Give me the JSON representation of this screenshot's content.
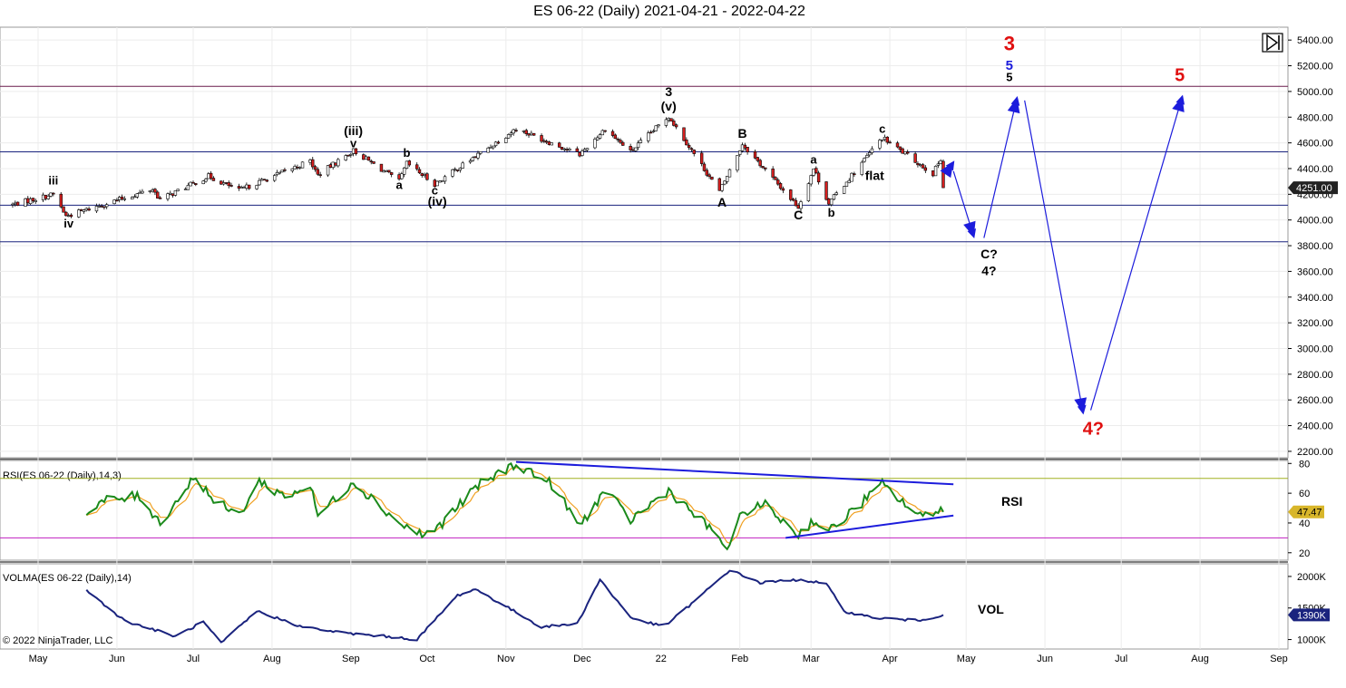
{
  "title": "ES 06-22 (Daily)  2021-04-21 - 2022-04-22",
  "copyright": "© 2022 NinjaTrader, LLC",
  "toolbar": {
    "icon": "skip-to-end-icon"
  },
  "colors": {
    "up_candle": "#ffffff",
    "down_candle": "#d61f1f",
    "candle_outline": "#000000",
    "level_lines": "#1a237e",
    "top_line": "#6a1b4d",
    "rsi_line": "#1b8a1b",
    "rsi_avg": "#f0a020",
    "rsi_70": "#a0b020",
    "rsi_30": "#c020c0",
    "vol_line": "#1a237e",
    "arrows": "#1c1cdc",
    "red_label": "#e01010",
    "blue_label": "#1c1cdc"
  },
  "chart_data": [
    {
      "type": "candlestick",
      "name": "price",
      "y_ticks": [
        "5400.00",
        "5200.00",
        "5000.00",
        "4800.00",
        "4600.00",
        "4400.00",
        "4200.00",
        "4000.00",
        "3800.00",
        "3600.00",
        "3400.00",
        "3200.00",
        "3000.00",
        "2800.00",
        "2600.00",
        "2400.00",
        "2200.00"
      ],
      "ylim": [
        2150,
        5500
      ],
      "x_ticks": [
        "May",
        "Jun",
        "Jul",
        "Aug",
        "Sep",
        "Oct",
        "Nov",
        "Dec",
        "22",
        "Feb",
        "Mar",
        "Apr",
        "May",
        "Jun",
        "Jul",
        "Aug",
        "Sep"
      ],
      "x_range": [
        "2021-05-01",
        "2022-09-01"
      ],
      "last_price": "4251.00",
      "horizontal_levels": [
        5040,
        4530,
        4115,
        3830
      ],
      "key_points": [
        {
          "date": "2021-04-21",
          "price": 4120
        },
        {
          "date": "2021-05-07",
          "price": 4200
        },
        {
          "date": "2021-05-12",
          "price": 4030
        },
        {
          "date": "2021-06-15",
          "price": 4240
        },
        {
          "date": "2021-06-18",
          "price": 4160
        },
        {
          "date": "2021-07-07",
          "price": 4340
        },
        {
          "date": "2021-07-19",
          "price": 4230
        },
        {
          "date": "2021-08-16",
          "price": 4460
        },
        {
          "date": "2021-08-19",
          "price": 4350
        },
        {
          "date": "2021-09-02",
          "price": 4540
        },
        {
          "date": "2021-09-20",
          "price": 4300
        },
        {
          "date": "2021-09-23",
          "price": 4440
        },
        {
          "date": "2021-10-04",
          "price": 4280
        },
        {
          "date": "2021-11-05",
          "price": 4710
        },
        {
          "date": "2021-11-30",
          "price": 4510
        },
        {
          "date": "2021-12-10",
          "price": 4710
        },
        {
          "date": "2021-12-20",
          "price": 4530
        },
        {
          "date": "2022-01-04",
          "price": 4808
        },
        {
          "date": "2022-01-24",
          "price": 4220
        },
        {
          "date": "2022-02-02",
          "price": 4590
        },
        {
          "date": "2022-02-24",
          "price": 4100
        },
        {
          "date": "2022-03-02",
          "price": 4400
        },
        {
          "date": "2022-03-08",
          "price": 4130
        },
        {
          "date": "2022-03-29",
          "price": 4640
        },
        {
          "date": "2022-04-18",
          "price": 4360
        },
        {
          "date": "2022-04-21",
          "price": 4480
        },
        {
          "date": "2022-04-22",
          "price": 4251
        }
      ],
      "wave_labels": [
        {
          "text": "iii",
          "date": "2021-05-07",
          "price": 4275,
          "color": "black",
          "size": 13
        },
        {
          "text": "iv",
          "date": "2021-05-13",
          "price": 3940,
          "color": "black",
          "size": 13
        },
        {
          "text": "(iii)",
          "date": "2021-09-02",
          "price": 4660,
          "color": "black",
          "size": 14
        },
        {
          "text": "v",
          "date": "2021-09-02",
          "price": 4565,
          "color": "black",
          "size": 13
        },
        {
          "text": "a",
          "date": "2021-09-20",
          "price": 4240,
          "color": "black",
          "size": 13
        },
        {
          "text": "b",
          "date": "2021-09-23",
          "price": 4490,
          "color": "black",
          "size": 13
        },
        {
          "text": "c",
          "date": "2021-10-04",
          "price": 4200,
          "color": "black",
          "size": 13
        },
        {
          "text": "(iv)",
          "date": "2021-10-05",
          "price": 4110,
          "color": "black",
          "size": 14
        },
        {
          "text": "3",
          "date": "2022-01-04",
          "price": 4965,
          "color": "black",
          "size": 14
        },
        {
          "text": "(v)",
          "date": "2022-01-04",
          "price": 4850,
          "color": "black",
          "size": 14
        },
        {
          "text": "A",
          "date": "2022-01-25",
          "price": 4105,
          "color": "black",
          "size": 14
        },
        {
          "text": "B",
          "date": "2022-02-02",
          "price": 4640,
          "color": "black",
          "size": 14
        },
        {
          "text": "C",
          "date": "2022-02-24",
          "price": 4005,
          "color": "black",
          "size": 14
        },
        {
          "text": "a",
          "date": "2022-03-02",
          "price": 4440,
          "color": "black",
          "size": 13
        },
        {
          "text": "b",
          "date": "2022-03-09",
          "price": 4025,
          "color": "black",
          "size": 13
        },
        {
          "text": "c",
          "date": "2022-03-29",
          "price": 4680,
          "color": "black",
          "size": 13
        },
        {
          "text": "flat",
          "date": "2022-03-26",
          "price": 4310,
          "color": "black",
          "size": 14
        },
        {
          "text": "C?",
          "date": "2022-05-10",
          "price": 3700,
          "color": "black",
          "size": 14
        },
        {
          "text": "4?",
          "date": "2022-05-10",
          "price": 3570,
          "color": "black",
          "size": 14
        },
        {
          "text": "3",
          "date": "2022-05-18",
          "price": 5320,
          "color": "red",
          "size": 22
        },
        {
          "text": "5",
          "date": "2022-05-18",
          "price": 5170,
          "color": "blue",
          "size": 15
        },
        {
          "text": "5",
          "date": "2022-05-18",
          "price": 5080,
          "color": "black",
          "size": 13
        },
        {
          "text": "5",
          "date": "2022-07-24",
          "price": 5080,
          "color": "red",
          "size": 20
        },
        {
          "text": "4?",
          "date": "2022-06-20",
          "price": 2330,
          "color": "red",
          "size": 20
        }
      ],
      "projection_arrows": [
        {
          "from": {
            "date": "2022-04-23",
            "price": 4360
          },
          "to": {
            "date": "2022-04-26",
            "price": 4450
          }
        },
        {
          "from": {
            "date": "2022-04-26",
            "price": 4380
          },
          "to": {
            "date": "2022-05-04",
            "price": 3870
          }
        },
        {
          "from": {
            "date": "2022-05-08",
            "price": 3860
          },
          "to": {
            "date": "2022-05-21",
            "price": 4950
          }
        },
        {
          "from": {
            "date": "2022-05-24",
            "price": 4930
          },
          "to": {
            "date": "2022-06-16",
            "price": 2500
          }
        },
        {
          "from": {
            "date": "2022-06-19",
            "price": 2520
          },
          "to": {
            "date": "2022-07-25",
            "price": 4960
          }
        }
      ]
    },
    {
      "type": "line",
      "name": "RSI",
      "label": "RSI(ES 06-22 (Daily),14,3)",
      "annotation": "RSI",
      "y_ticks": [
        "80",
        "60",
        "40",
        "20"
      ],
      "ylim": [
        15,
        82
      ],
      "levels": [
        70,
        30
      ],
      "last_value": "47.47",
      "key_points": [
        {
          "date": "2021-05-20",
          "value": 45
        },
        {
          "date": "2021-05-27",
          "value": 55
        },
        {
          "date": "2021-06-10",
          "value": 58
        },
        {
          "date": "2021-06-18",
          "value": 40
        },
        {
          "date": "2021-07-02",
          "value": 72
        },
        {
          "date": "2021-07-09",
          "value": 55
        },
        {
          "date": "2021-07-19",
          "value": 45
        },
        {
          "date": "2021-07-27",
          "value": 68
        },
        {
          "date": "2021-08-06",
          "value": 58
        },
        {
          "date": "2021-08-16",
          "value": 65
        },
        {
          "date": "2021-08-19",
          "value": 45
        },
        {
          "date": "2021-09-02",
          "value": 68
        },
        {
          "date": "2021-09-20",
          "value": 40
        },
        {
          "date": "2021-09-29",
          "value": 32
        },
        {
          "date": "2021-10-04",
          "value": 35
        },
        {
          "date": "2021-10-21",
          "value": 65
        },
        {
          "date": "2021-11-05",
          "value": 80
        },
        {
          "date": "2021-11-19",
          "value": 66
        },
        {
          "date": "2021-11-30",
          "value": 38
        },
        {
          "date": "2021-12-10",
          "value": 62
        },
        {
          "date": "2021-12-20",
          "value": 42
        },
        {
          "date": "2022-01-04",
          "value": 62
        },
        {
          "date": "2022-01-19",
          "value": 38
        },
        {
          "date": "2022-01-28",
          "value": 22
        },
        {
          "date": "2022-02-02",
          "value": 48
        },
        {
          "date": "2022-02-11",
          "value": 52
        },
        {
          "date": "2022-02-24",
          "value": 32
        },
        {
          "date": "2022-03-02",
          "value": 42
        },
        {
          "date": "2022-03-08",
          "value": 34
        },
        {
          "date": "2022-03-29",
          "value": 66
        },
        {
          "date": "2022-04-13",
          "value": 44
        },
        {
          "date": "2022-04-21",
          "value": 50
        },
        {
          "date": "2022-04-22",
          "value": 47.47
        }
      ],
      "trendlines": [
        {
          "from": {
            "date": "2021-11-05",
            "value": 81
          },
          "to": {
            "date": "2022-04-26",
            "value": 66
          }
        },
        {
          "from": {
            "date": "2022-02-19",
            "value": 30
          },
          "to": {
            "date": "2022-04-26",
            "value": 45
          }
        }
      ]
    },
    {
      "type": "line",
      "name": "VOLMA",
      "label": "VOLMA(ES 06-22 (Daily),14)",
      "annotation": "VOL",
      "y_ticks": [
        "2000K",
        "1500K",
        "1000K"
      ],
      "ylim": [
        850,
        2200
      ],
      "last_value": "1390K",
      "key_points": [
        {
          "date": "2021-05-20",
          "value": 1780
        },
        {
          "date": "2021-06-04",
          "value": 1300
        },
        {
          "date": "2021-06-24",
          "value": 1050
        },
        {
          "date": "2021-07-05",
          "value": 1280
        },
        {
          "date": "2021-07-12",
          "value": 940
        },
        {
          "date": "2021-07-26",
          "value": 1450
        },
        {
          "date": "2021-08-13",
          "value": 1200
        },
        {
          "date": "2021-08-30",
          "value": 1100
        },
        {
          "date": "2021-09-15",
          "value": 1050
        },
        {
          "date": "2021-09-27",
          "value": 1000
        },
        {
          "date": "2021-10-13",
          "value": 1700
        },
        {
          "date": "2021-10-20",
          "value": 1800
        },
        {
          "date": "2021-11-15",
          "value": 1200
        },
        {
          "date": "2021-11-29",
          "value": 1250
        },
        {
          "date": "2021-12-08",
          "value": 1950
        },
        {
          "date": "2021-12-20",
          "value": 1350
        },
        {
          "date": "2022-01-02",
          "value": 1200
        },
        {
          "date": "2022-01-14",
          "value": 1600
        },
        {
          "date": "2022-01-28",
          "value": 2100
        },
        {
          "date": "2022-02-09",
          "value": 1900
        },
        {
          "date": "2022-02-25",
          "value": 1950
        },
        {
          "date": "2022-03-07",
          "value": 1880
        },
        {
          "date": "2022-03-14",
          "value": 1450
        },
        {
          "date": "2022-03-25",
          "value": 1350
        },
        {
          "date": "2022-04-12",
          "value": 1300
        },
        {
          "date": "2022-04-22",
          "value": 1390
        }
      ]
    }
  ]
}
